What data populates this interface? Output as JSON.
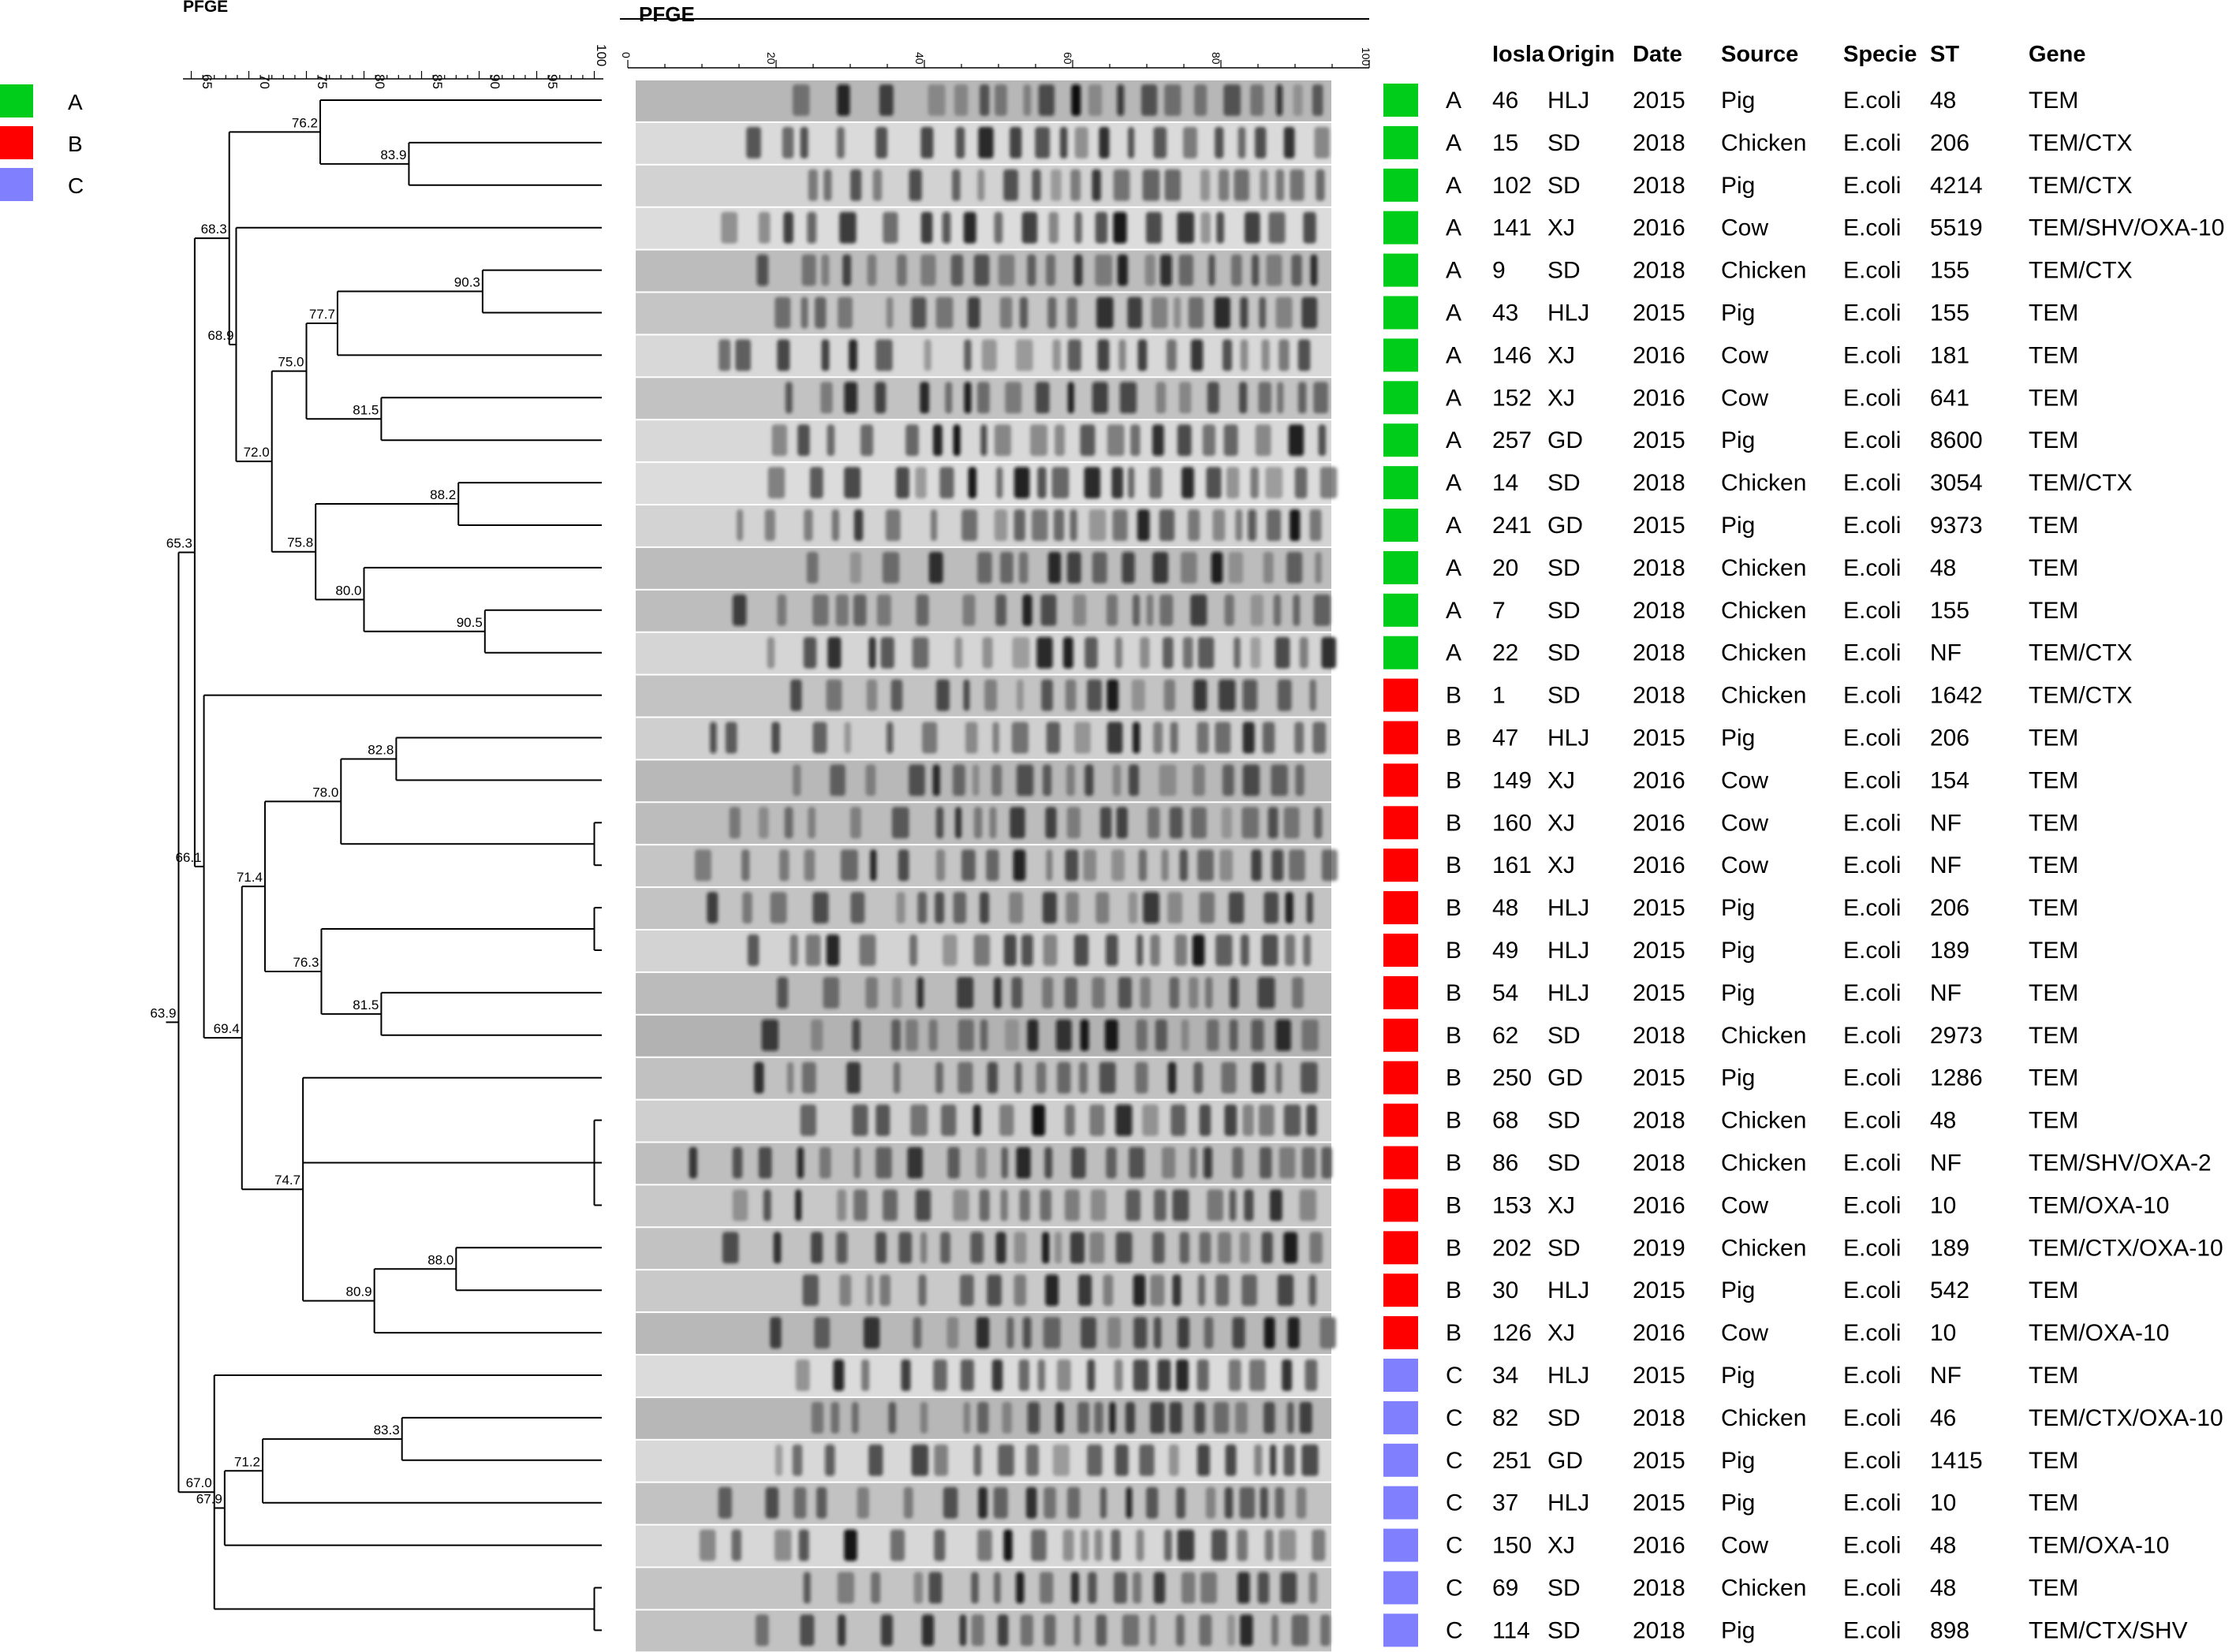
{
  "header": {
    "dendrogram_label": "PFGE",
    "gel_label": "PFGE"
  },
  "legend": [
    {
      "label": "A",
      "color": "#00cc1a"
    },
    {
      "label": "B",
      "color": "#ff0000"
    },
    {
      "label": "C",
      "color": "#8080ff"
    }
  ],
  "scale": {
    "ticks": [
      "65",
      "70",
      "75",
      "80",
      "85",
      "90",
      "95",
      "100"
    ],
    "gel_ticks": [
      "0",
      "20",
      "40",
      "60",
      "80",
      "100"
    ]
  },
  "columns": [
    "Iosla",
    "Origin",
    "Date",
    "Source",
    "Specie",
    "ST",
    "Gene"
  ],
  "rows": [
    {
      "cluster": "A",
      "isolate": "46",
      "origin": "HLJ",
      "date": "2015",
      "source": "Pig",
      "specie": "E.coli",
      "st": "48",
      "gene": "TEM"
    },
    {
      "cluster": "A",
      "isolate": "15",
      "origin": "SD",
      "date": "2018",
      "source": "Chicken",
      "specie": "E.coli",
      "st": "206",
      "gene": "TEM/CTX"
    },
    {
      "cluster": "A",
      "isolate": "102",
      "origin": "SD",
      "date": "2018",
      "source": "Pig",
      "specie": "E.coli",
      "st": "4214",
      "gene": "TEM/CTX"
    },
    {
      "cluster": "A",
      "isolate": "141",
      "origin": "XJ",
      "date": "2016",
      "source": "Cow",
      "specie": "E.coli",
      "st": "5519",
      "gene": "TEM/SHV/OXA-10"
    },
    {
      "cluster": "A",
      "isolate": "9",
      "origin": "SD",
      "date": "2018",
      "source": "Chicken",
      "specie": "E.coli",
      "st": "155",
      "gene": "TEM/CTX"
    },
    {
      "cluster": "A",
      "isolate": "43",
      "origin": "HLJ",
      "date": "2015",
      "source": "Pig",
      "specie": "E.coli",
      "st": "155",
      "gene": "TEM"
    },
    {
      "cluster": "A",
      "isolate": "146",
      "origin": "XJ",
      "date": "2016",
      "source": "Cow",
      "specie": "E.coli",
      "st": "181",
      "gene": "TEM"
    },
    {
      "cluster": "A",
      "isolate": "152",
      "origin": "XJ",
      "date": "2016",
      "source": "Cow",
      "specie": "E.coli",
      "st": "641",
      "gene": "TEM"
    },
    {
      "cluster": "A",
      "isolate": "257",
      "origin": "GD",
      "date": "2015",
      "source": "Pig",
      "specie": "E.coli",
      "st": "8600",
      "gene": "TEM"
    },
    {
      "cluster": "A",
      "isolate": "14",
      "origin": "SD",
      "date": "2018",
      "source": "Chicken",
      "specie": "E.coli",
      "st": "3054",
      "gene": "TEM/CTX"
    },
    {
      "cluster": "A",
      "isolate": "241",
      "origin": "GD",
      "date": "2015",
      "source": "Pig",
      "specie": "E.coli",
      "st": "9373",
      "gene": "TEM"
    },
    {
      "cluster": "A",
      "isolate": "20",
      "origin": "SD",
      "date": "2018",
      "source": "Chicken",
      "specie": "E.coli",
      "st": "48",
      "gene": "TEM"
    },
    {
      "cluster": "A",
      "isolate": "7",
      "origin": "SD",
      "date": "2018",
      "source": "Chicken",
      "specie": "E.coli",
      "st": "155",
      "gene": "TEM"
    },
    {
      "cluster": "A",
      "isolate": "22",
      "origin": "SD",
      "date": "2018",
      "source": "Chicken",
      "specie": "E.coli",
      "st": "NF",
      "gene": "TEM/CTX"
    },
    {
      "cluster": "B",
      "isolate": "1",
      "origin": "SD",
      "date": "2018",
      "source": "Chicken",
      "specie": "E.coli",
      "st": "1642",
      "gene": "TEM/CTX"
    },
    {
      "cluster": "B",
      "isolate": "47",
      "origin": "HLJ",
      "date": "2015",
      "source": "Pig",
      "specie": "E.coli",
      "st": "206",
      "gene": "TEM"
    },
    {
      "cluster": "B",
      "isolate": "149",
      "origin": "XJ",
      "date": "2016",
      "source": "Cow",
      "specie": "E.coli",
      "st": "154",
      "gene": "TEM"
    },
    {
      "cluster": "B",
      "isolate": "160",
      "origin": "XJ",
      "date": "2016",
      "source": "Cow",
      "specie": "E.coli",
      "st": "NF",
      "gene": "TEM"
    },
    {
      "cluster": "B",
      "isolate": "161",
      "origin": "XJ",
      "date": "2016",
      "source": "Cow",
      "specie": "E.coli",
      "st": "NF",
      "gene": "TEM"
    },
    {
      "cluster": "B",
      "isolate": "48",
      "origin": "HLJ",
      "date": "2015",
      "source": "Pig",
      "specie": "E.coli",
      "st": "206",
      "gene": "TEM"
    },
    {
      "cluster": "B",
      "isolate": "49",
      "origin": "HLJ",
      "date": "2015",
      "source": "Pig",
      "specie": "E.coli",
      "st": "189",
      "gene": "TEM"
    },
    {
      "cluster": "B",
      "isolate": "54",
      "origin": "HLJ",
      "date": "2015",
      "source": "Pig",
      "specie": "E.coli",
      "st": "NF",
      "gene": "TEM"
    },
    {
      "cluster": "B",
      "isolate": "62",
      "origin": "SD",
      "date": "2018",
      "source": "Chicken",
      "specie": "E.coli",
      "st": "2973",
      "gene": "TEM"
    },
    {
      "cluster": "B",
      "isolate": "250",
      "origin": "GD",
      "date": "2015",
      "source": "Pig",
      "specie": "E.coli",
      "st": "1286",
      "gene": "TEM"
    },
    {
      "cluster": "B",
      "isolate": "68",
      "origin": "SD",
      "date": "2018",
      "source": "Chicken",
      "specie": "E.coli",
      "st": "48",
      "gene": "TEM"
    },
    {
      "cluster": "B",
      "isolate": "86",
      "origin": "SD",
      "date": "2018",
      "source": "Chicken",
      "specie": "E.coli",
      "st": "NF",
      "gene": "TEM/SHV/OXA-2"
    },
    {
      "cluster": "B",
      "isolate": "153",
      "origin": "XJ",
      "date": "2016",
      "source": "Cow",
      "specie": "E.coli",
      "st": "10",
      "gene": "TEM/OXA-10"
    },
    {
      "cluster": "B",
      "isolate": "202",
      "origin": "SD",
      "date": "2019",
      "source": "Chicken",
      "specie": "E.coli",
      "st": "189",
      "gene": "TEM/CTX/OXA-10"
    },
    {
      "cluster": "B",
      "isolate": "30",
      "origin": "HLJ",
      "date": "2015",
      "source": "Pig",
      "specie": "E.coli",
      "st": "542",
      "gene": "TEM"
    },
    {
      "cluster": "B",
      "isolate": "126",
      "origin": "XJ",
      "date": "2016",
      "source": "Cow",
      "specie": "E.coli",
      "st": "10",
      "gene": "TEM/OXA-10"
    },
    {
      "cluster": "C",
      "isolate": "34",
      "origin": "HLJ",
      "date": "2015",
      "source": "Pig",
      "specie": "E.coli",
      "st": "NF",
      "gene": "TEM"
    },
    {
      "cluster": "C",
      "isolate": "82",
      "origin": "SD",
      "date": "2018",
      "source": "Chicken",
      "specie": "E.coli",
      "st": "46",
      "gene": "TEM/CTX/OXA-10"
    },
    {
      "cluster": "C",
      "isolate": "251",
      "origin": "GD",
      "date": "2015",
      "source": "Pig",
      "specie": "E.coli",
      "st": "1415",
      "gene": "TEM"
    },
    {
      "cluster": "C",
      "isolate": "37",
      "origin": "HLJ",
      "date": "2015",
      "source": "Pig",
      "specie": "E.coli",
      "st": "10",
      "gene": "TEM"
    },
    {
      "cluster": "C",
      "isolate": "150",
      "origin": "XJ",
      "date": "2016",
      "source": "Cow",
      "specie": "E.coli",
      "st": "48",
      "gene": "TEM/OXA-10"
    },
    {
      "cluster": "C",
      "isolate": "69",
      "origin": "SD",
      "date": "2018",
      "source": "Chicken",
      "specie": "E.coli",
      "st": "48",
      "gene": "TEM"
    },
    {
      "cluster": "C",
      "isolate": "114",
      "origin": "SD",
      "date": "2018",
      "source": "Pig",
      "specie": "E.coli",
      "st": "898",
      "gene": "TEM/CTX/SHV"
    }
  ],
  "dendrogram": {
    "nodes": [
      {
        "id": "n1",
        "similarity": 76.2,
        "label": "76.2",
        "children": [
          0,
          "n2"
        ]
      },
      {
        "id": "n2",
        "similarity": 83.9,
        "label": "83.9",
        "children": [
          1,
          2
        ]
      },
      {
        "id": "n3",
        "similarity": 90.3,
        "label": "90.3",
        "children": [
          4,
          5
        ]
      },
      {
        "id": "n4",
        "similarity": 77.7,
        "label": "77.7",
        "children": [
          "n3",
          6
        ]
      },
      {
        "id": "n5",
        "similarity": 81.5,
        "label": "81.5",
        "children": [
          7,
          8
        ]
      },
      {
        "id": "n6",
        "similarity": 75.0,
        "label": "75.0",
        "children": [
          "n4",
          "n5"
        ]
      },
      {
        "id": "n7",
        "similarity": 88.2,
        "label": "88.2",
        "children": [
          9,
          10
        ]
      },
      {
        "id": "n8",
        "similarity": 90.5,
        "label": "90.5",
        "children": [
          12,
          13
        ]
      },
      {
        "id": "n9",
        "similarity": 80.0,
        "label": "80.0",
        "children": [
          11,
          "n8"
        ]
      },
      {
        "id": "n10",
        "similarity": 75.8,
        "label": "75.8",
        "children": [
          "n7",
          "n9"
        ]
      },
      {
        "id": "n11",
        "similarity": 72.0,
        "label": "72.0",
        "children": [
          "n6",
          "n10"
        ]
      },
      {
        "id": "n12",
        "similarity": 68.9,
        "label": "68.9",
        "children": [
          3,
          "n11"
        ]
      },
      {
        "id": "n13",
        "similarity": 68.3,
        "label": "68.3",
        "children": [
          "n1",
          "n12"
        ]
      },
      {
        "id": "n14",
        "similarity": 82.8,
        "label": "82.8",
        "children": [
          15,
          16
        ]
      },
      {
        "id": "n15",
        "similarity": 100,
        "label": "",
        "children": [
          17,
          18
        ]
      },
      {
        "id": "n16",
        "similarity": 78.0,
        "label": "78.0",
        "children": [
          "n14",
          "n15"
        ]
      },
      {
        "id": "n17",
        "similarity": 100,
        "label": "",
        "children": [
          19,
          20
        ]
      },
      {
        "id": "n18",
        "similarity": 81.5,
        "label": "81.5",
        "children": [
          21,
          22
        ]
      },
      {
        "id": "n19",
        "similarity": 76.3,
        "label": "76.3",
        "children": [
          "n17",
          "n18"
        ]
      },
      {
        "id": "n20",
        "similarity": 71.4,
        "label": "71.4",
        "children": [
          "n16",
          "n19"
        ]
      },
      {
        "id": "n21",
        "similarity": 100,
        "label": "",
        "children": [
          24,
          25,
          26
        ]
      },
      {
        "id": "n22",
        "similarity": 88.0,
        "label": "88.0",
        "children": [
          27,
          28
        ]
      },
      {
        "id": "n23",
        "similarity": 80.9,
        "label": "80.9",
        "children": [
          "n22",
          29
        ]
      },
      {
        "id": "n24",
        "similarity": 74.7,
        "label": "74.7",
        "children": [
          23,
          "n21",
          "n23"
        ]
      },
      {
        "id": "n25",
        "similarity": 69.4,
        "label": "69.4",
        "children": [
          "n20",
          "n24"
        ]
      },
      {
        "id": "n26",
        "similarity": 66.1,
        "label": "66.1",
        "children": [
          14,
          "n25"
        ]
      },
      {
        "id": "n27",
        "similarity": 65.3,
        "label": "65.3",
        "children": [
          "n13",
          "n26"
        ]
      },
      {
        "id": "n28",
        "similarity": 83.3,
        "label": "83.3",
        "children": [
          31,
          32
        ]
      },
      {
        "id": "n29",
        "similarity": 71.2,
        "label": "71.2",
        "children": [
          "n28",
          33
        ]
      },
      {
        "id": "n30",
        "similarity": 67.9,
        "label": "67.9",
        "children": [
          "n29",
          34
        ]
      },
      {
        "id": "n31",
        "similarity": 100,
        "label": "",
        "children": [
          35,
          36
        ]
      },
      {
        "id": "n32",
        "similarity": 67.0,
        "label": "67.0",
        "children": [
          30,
          "n30",
          "n31"
        ]
      },
      {
        "id": "n33",
        "similarity": 63.9,
        "label": "63.9",
        "children": [
          "n27",
          "n32"
        ]
      }
    ]
  }
}
